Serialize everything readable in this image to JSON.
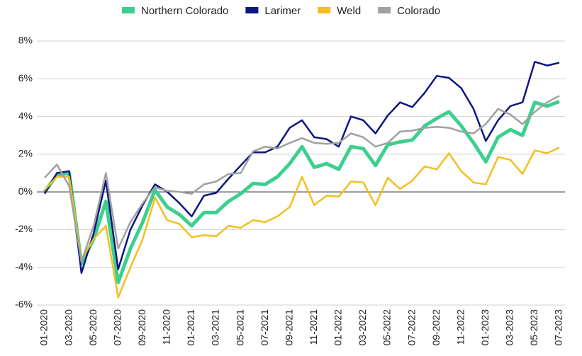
{
  "chart_data": {
    "type": "line",
    "categories": [
      "01-2020",
      null,
      "03-2020",
      null,
      "05-2020",
      null,
      "07-2020",
      null,
      "09-2020",
      null,
      "11-2020",
      null,
      "01-2021",
      null,
      "03-2021",
      null,
      "05-2021",
      null,
      "07-2021",
      null,
      "09-2021",
      null,
      "11-2021",
      null,
      "01-2022",
      null,
      "03-2022",
      null,
      "05-2022",
      null,
      "07-2022",
      null,
      "09-2022",
      null,
      "11-2022",
      null,
      "01-2023",
      null,
      "03-2023",
      null,
      "05-2023",
      null,
      "07-2023"
    ],
    "series": [
      {
        "name": "Northern Colorado",
        "color": "#3ccf8e",
        "values": [
          0.0,
          0.9,
          1.0,
          -3.8,
          -2.5,
          -0.5,
          -4.8,
          -3.0,
          -1.6,
          0.1,
          -0.8,
          -1.2,
          -1.8,
          -1.1,
          -1.1,
          -0.5,
          -0.1,
          0.45,
          0.4,
          0.8,
          1.5,
          2.4,
          1.3,
          1.5,
          1.2,
          2.4,
          2.3,
          1.4,
          2.5,
          2.65,
          2.75,
          3.5,
          3.9,
          4.25,
          3.5,
          2.6,
          1.6,
          2.9,
          3.3,
          3.0,
          4.75,
          4.55,
          4.8
        ]
      },
      {
        "name": "Larimer",
        "color": "#0d1680",
        "values": [
          -0.1,
          1.0,
          1.1,
          -4.3,
          -2.2,
          0.6,
          -4.1,
          -2.0,
          -0.7,
          0.4,
          0.0,
          -0.6,
          -1.3,
          -0.2,
          -0.05,
          0.7,
          1.4,
          2.1,
          2.1,
          2.4,
          3.4,
          3.8,
          2.9,
          2.8,
          2.4,
          4.0,
          3.8,
          3.1,
          4.05,
          4.75,
          4.5,
          5.25,
          6.15,
          6.05,
          5.5,
          4.4,
          2.7,
          3.8,
          4.55,
          4.75,
          6.9,
          6.7,
          6.85
        ]
      },
      {
        "name": "Weld",
        "color": "#f5be1e",
        "values": [
          0.1,
          0.8,
          0.8,
          -3.6,
          -2.5,
          -1.8,
          -5.6,
          -4.0,
          -2.5,
          -0.3,
          -1.5,
          -1.7,
          -2.4,
          -2.3,
          -2.35,
          -1.8,
          -1.9,
          -1.5,
          -1.6,
          -1.3,
          -0.8,
          0.8,
          -0.7,
          -0.2,
          -0.25,
          0.55,
          0.5,
          -0.7,
          0.75,
          0.15,
          0.6,
          1.35,
          1.2,
          2.05,
          1.1,
          0.5,
          0.4,
          1.85,
          1.7,
          0.95,
          2.2,
          2.05,
          2.35
        ]
      },
      {
        "name": "Colorado",
        "color": "#a0a0a0",
        "values": [
          0.75,
          1.45,
          0.3,
          -3.7,
          -1.8,
          1.0,
          -3.0,
          -1.6,
          -0.6,
          0.25,
          0.05,
          0.0,
          -0.1,
          0.4,
          0.55,
          0.95,
          1.0,
          2.15,
          2.4,
          2.3,
          2.6,
          2.85,
          2.6,
          2.55,
          2.6,
          3.1,
          2.9,
          2.4,
          2.6,
          3.2,
          3.25,
          3.4,
          3.45,
          3.4,
          3.2,
          3.1,
          3.6,
          4.4,
          4.1,
          3.6,
          4.25,
          4.75,
          5.1
        ]
      }
    ],
    "ylim": [
      -6,
      8
    ],
    "yticks": [
      {
        "value": -6,
        "label": "-6%"
      },
      {
        "value": -4,
        "label": "-4%"
      },
      {
        "value": -2,
        "label": "-2%"
      },
      {
        "value": 0,
        "label": "0%"
      },
      {
        "value": 2,
        "label": "2%"
      },
      {
        "value": 4,
        "label": "4%"
      },
      {
        "value": 6,
        "label": "6%"
      },
      {
        "value": 8,
        "label": "8%"
      }
    ],
    "grid": true,
    "legend": "top"
  }
}
